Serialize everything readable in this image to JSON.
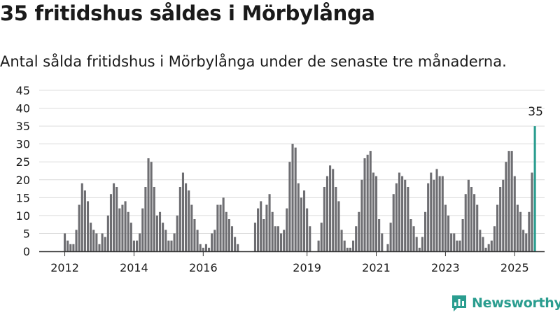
{
  "title": "35 fritidshus såldes i Mörbylånga",
  "subtitle": "Antal sålda fritidshus i Mörbylånga under de senaste tre månaderna.",
  "brand": "Newsworthy",
  "colors": {
    "bar": "#6e6e72",
    "highlight": "#2a9d8f",
    "grid": "#dcdcdc",
    "axis": "#333333",
    "text": "#1a1a1a"
  },
  "chart_data": {
    "type": "bar",
    "ylim": [
      0,
      45
    ],
    "yticks": [
      0,
      5,
      10,
      15,
      20,
      25,
      30,
      35,
      40,
      45
    ],
    "xticks": [
      {
        "label": "2012",
        "index": 0
      },
      {
        "label": "2014",
        "index": 24
      },
      {
        "label": "2016",
        "index": 48
      },
      {
        "label": "2019",
        "index": 84
      },
      {
        "label": "2021",
        "index": 108
      },
      {
        "label": "2023",
        "index": 132
      },
      {
        "label": "2025",
        "index": 156
      }
    ],
    "highlight_label": "35",
    "grid": true,
    "values": [
      5,
      3,
      2,
      2,
      6,
      13,
      19,
      17,
      14,
      8,
      6,
      5,
      2,
      5,
      4,
      10,
      16,
      19,
      18,
      12,
      13,
      14,
      11,
      8,
      3,
      3,
      5,
      12,
      18,
      26,
      25,
      18,
      10,
      11,
      8,
      6,
      3,
      3,
      5,
      10,
      18,
      22,
      19,
      17,
      13,
      9,
      6,
      2,
      1,
      2,
      1,
      5,
      6,
      13,
      13,
      15,
      11,
      9,
      7,
      4,
      2,
      null,
      null,
      null,
      null,
      null,
      8,
      12,
      14,
      9,
      13,
      16,
      11,
      7,
      7,
      5,
      6,
      12,
      25,
      30,
      29,
      19,
      15,
      17,
      12,
      7,
      null,
      null,
      3,
      8,
      18,
      21,
      24,
      23,
      18,
      14,
      6,
      3,
      1,
      1,
      3,
      7,
      11,
      20,
      26,
      27,
      28,
      22,
      21,
      9,
      5,
      null,
      2,
      8,
      16,
      19,
      22,
      21,
      20,
      18,
      9,
      7,
      4,
      1,
      4,
      11,
      19,
      22,
      20,
      23,
      21,
      21,
      13,
      10,
      5,
      5,
      3,
      3,
      9,
      16,
      20,
      18,
      16,
      13,
      6,
      4,
      1,
      2,
      3,
      7,
      13,
      18,
      20,
      25,
      28,
      28,
      21,
      13,
      11,
      6,
      5,
      11,
      22,
      35
    ]
  }
}
